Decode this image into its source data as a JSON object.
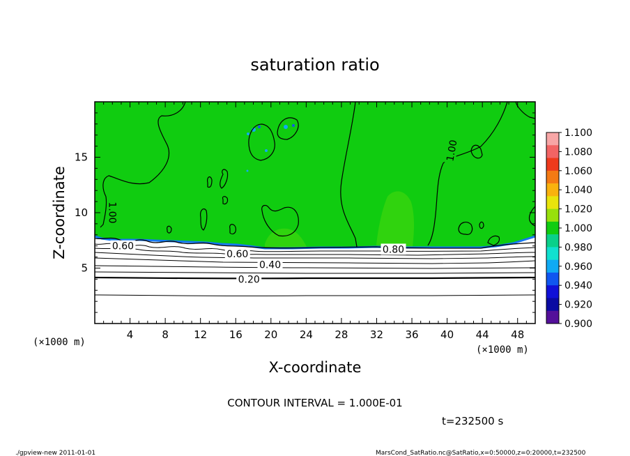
{
  "chart_data": {
    "type": "heatmap",
    "title": "saturation ratio",
    "xlabel": "X-coordinate",
    "ylabel": "Z-coordinate",
    "x_unit": "(×1000 m)",
    "z_unit": "(×1000 m)",
    "xlim": [
      0,
      50
    ],
    "ylim": [
      0,
      20
    ],
    "x_ticks": [
      4,
      8,
      12,
      16,
      20,
      24,
      28,
      32,
      36,
      40,
      44,
      48
    ],
    "y_ticks": [
      5,
      10,
      15
    ],
    "contour_labels": [
      {
        "text": "0.20",
        "value": 0.2,
        "x": 17.5,
        "z": 4.0
      },
      {
        "text": "0.40",
        "value": 0.4,
        "x": 19.9,
        "z": 5.3
      },
      {
        "text": "0.60",
        "value": 0.6,
        "x": 3.2,
        "z": 7.0
      },
      {
        "text": "0.60",
        "value": 0.6,
        "x": 16.2,
        "z": 6.3
      },
      {
        "text": "0.80",
        "value": 0.8,
        "x": 33.9,
        "z": 6.7
      },
      {
        "text": "1.00",
        "value": 1.0,
        "x": 40.5,
        "z": 15.6
      },
      {
        "text": "1.00",
        "value": 1.0,
        "x": 2.0,
        "z": 10.0
      }
    ],
    "colorbar": {
      "labels": [
        "1.100",
        "1.080",
        "1.060",
        "1.040",
        "1.020",
        "1.000",
        "0.980",
        "0.960",
        "0.940",
        "0.920",
        "0.900"
      ],
      "colors": [
        "#f7a6a6",
        "#f26464",
        "#ee3a1c",
        "#f47a14",
        "#f9b20e",
        "#e8e40c",
        "#98e00c",
        "#10cc10",
        "#0ad08a",
        "#10e0d0",
        "#10aaf4",
        "#1056f0",
        "#1010d8",
        "#0a0aa2",
        "#54109a"
      ]
    },
    "contour_interval_text": "CONTOUR INTERVAL = 1.000E-01",
    "time_text": "t=232500 s",
    "footer_left": "./gpview-new   2011-01-01",
    "footer_right": "MarsCond_SatRatio.nc@SatRatio,x=0:50000,z=0:20000,t=232500"
  }
}
